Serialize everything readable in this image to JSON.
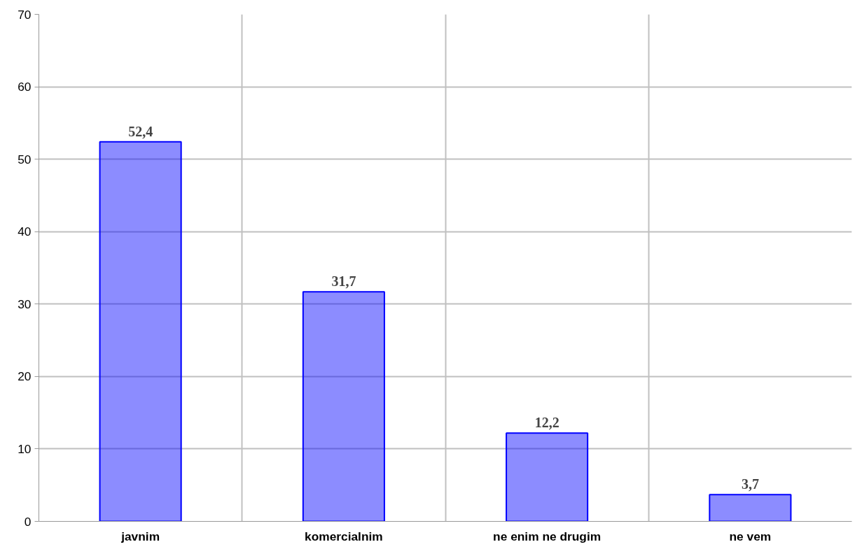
{
  "chart_data": {
    "type": "bar",
    "categories": [
      "javnim",
      "komercialnim",
      "ne enim ne drugim",
      "ne vem"
    ],
    "values": [
      52.4,
      31.7,
      12.2,
      3.7
    ],
    "value_labels": [
      "52,4",
      "31,7",
      "12,2",
      "3,7"
    ],
    "color": "#0000ff",
    "ylim": [
      0,
      70
    ],
    "yticks": [
      0,
      10,
      20,
      30,
      40,
      50,
      60,
      70
    ],
    "grid": true
  }
}
